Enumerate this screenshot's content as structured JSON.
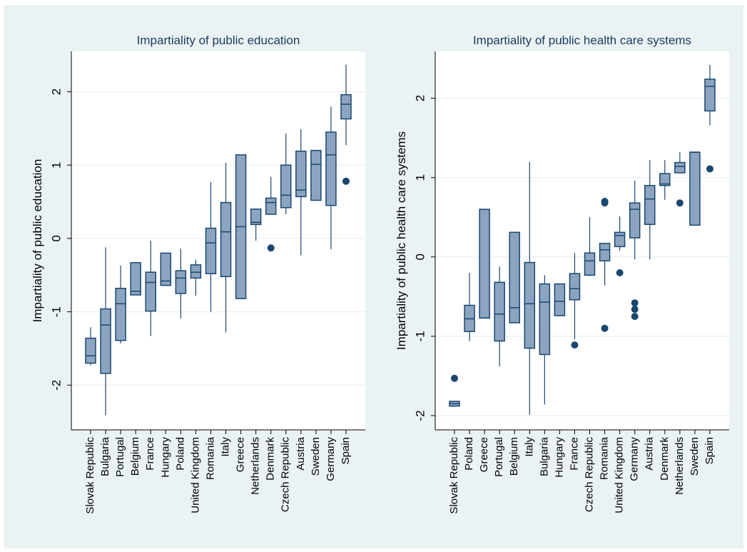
{
  "chart_data": [
    {
      "type": "box",
      "title": "Impartiality of public education",
      "ylabel": "Impartiality of public education",
      "categories": [
        "Slovak Republic",
        "Bulgaria",
        "Portugal",
        "Belgium",
        "France",
        "Hungary",
        "Poland",
        "United Kingdom",
        "Romania",
        "Italy",
        "Greece",
        "Netherlands",
        "Denmark",
        "Czech Republic",
        "Austria",
        "Sweden",
        "Germany",
        "Spain"
      ],
      "boxes": [
        {
          "min": -1.73,
          "q1": -1.7,
          "median": -1.6,
          "q3": -1.36,
          "max": -1.21,
          "outliers": []
        },
        {
          "min": -2.41,
          "q1": -1.84,
          "median": -1.18,
          "q3": -0.96,
          "max": -0.12,
          "outliers": []
        },
        {
          "min": -1.43,
          "q1": -1.39,
          "median": -0.89,
          "q3": -0.68,
          "max": -0.37,
          "outliers": []
        },
        {
          "min": -0.77,
          "q1": -0.77,
          "median": -0.72,
          "q3": -0.33,
          "max": -0.33,
          "outliers": []
        },
        {
          "min": -1.33,
          "q1": -0.99,
          "median": -0.6,
          "q3": -0.46,
          "max": -0.03,
          "outliers": []
        },
        {
          "min": -0.64,
          "q1": -0.64,
          "median": -0.58,
          "q3": -0.2,
          "max": -0.2,
          "outliers": []
        },
        {
          "min": -1.09,
          "q1": -0.75,
          "median": -0.54,
          "q3": -0.44,
          "max": -0.14,
          "outliers": []
        },
        {
          "min": -0.78,
          "q1": -0.54,
          "median": -0.46,
          "q3": -0.36,
          "max": -0.29,
          "outliers": []
        },
        {
          "min": -1.0,
          "q1": -0.48,
          "median": -0.06,
          "q3": 0.14,
          "max": 0.77,
          "outliers": []
        },
        {
          "min": -1.28,
          "q1": -0.52,
          "median": 0.09,
          "q3": 0.49,
          "max": 1.03,
          "outliers": []
        },
        {
          "min": -0.82,
          "q1": -0.82,
          "median": 0.16,
          "q3": 1.14,
          "max": 1.14,
          "outliers": []
        },
        {
          "min": -0.03,
          "q1": 0.19,
          "median": 0.22,
          "q3": 0.4,
          "max": 0.4,
          "outliers": []
        },
        {
          "min": 0.33,
          "q1": 0.33,
          "median": 0.49,
          "q3": 0.55,
          "max": 0.84,
          "outliers": [
            -0.13
          ]
        },
        {
          "min": 0.33,
          "q1": 0.42,
          "median": 0.59,
          "q3": 1.0,
          "max": 1.43,
          "outliers": []
        },
        {
          "min": -0.23,
          "q1": 0.57,
          "median": 0.66,
          "q3": 1.19,
          "max": 1.49,
          "outliers": []
        },
        {
          "min": 0.52,
          "q1": 0.52,
          "median": 1.01,
          "q3": 1.2,
          "max": 1.2,
          "outliers": []
        },
        {
          "min": -0.15,
          "q1": 0.45,
          "median": 1.14,
          "q3": 1.45,
          "max": 1.8,
          "outliers": []
        },
        {
          "min": 1.27,
          "q1": 1.63,
          "median": 1.83,
          "q3": 1.96,
          "max": 2.37,
          "outliers": [
            0.78
          ]
        }
      ],
      "ylim": [
        -2.61,
        2.55
      ],
      "yticks": [
        -2,
        -1,
        0,
        1,
        2
      ],
      "grid": true,
      "color": "#8ca4c0",
      "edge_color": "#1a476f"
    },
    {
      "type": "box",
      "title": "Impartiality of public health care systems",
      "ylabel": "Impartiality of public health care systems",
      "categories": [
        "Slovak Republic",
        "Poland",
        "Greece",
        "Portugal",
        "Belgium",
        "Italy",
        "Bulgaria",
        "Hungary",
        "France",
        "Czech Republic",
        "Romania",
        "United Kingdom",
        "Germany",
        "Austria",
        "Denmark",
        "Netherlands",
        "Sweden",
        "Spain"
      ],
      "boxes": [
        {
          "min": -1.88,
          "q1": -1.88,
          "median": -1.85,
          "q3": -1.82,
          "max": -1.82,
          "outliers": [
            -1.53
          ]
        },
        {
          "min": -1.06,
          "q1": -0.94,
          "median": -0.78,
          "q3": -0.61,
          "max": -0.2,
          "outliers": []
        },
        {
          "min": -0.77,
          "q1": -0.77,
          "median": -0.77,
          "q3": 0.6,
          "max": 0.6,
          "outliers": []
        },
        {
          "min": -1.38,
          "q1": -1.06,
          "median": -0.72,
          "q3": -0.32,
          "max": -0.12,
          "outliers": []
        },
        {
          "min": -0.83,
          "q1": -0.83,
          "median": -0.64,
          "q3": 0.31,
          "max": 0.31,
          "outliers": []
        },
        {
          "min": -1.99,
          "q1": -1.15,
          "median": -0.59,
          "q3": -0.07,
          "max": 1.2,
          "outliers": []
        },
        {
          "min": -1.86,
          "q1": -1.23,
          "median": -0.57,
          "q3": -0.34,
          "max": -0.23,
          "outliers": []
        },
        {
          "min": -0.74,
          "q1": -0.74,
          "median": -0.56,
          "q3": -0.34,
          "max": -0.34,
          "outliers": []
        },
        {
          "min": -1.04,
          "q1": -0.54,
          "median": -0.4,
          "q3": -0.21,
          "max": 0.05,
          "outliers": [
            -1.11
          ]
        },
        {
          "min": -0.24,
          "q1": -0.23,
          "median": -0.05,
          "q3": 0.05,
          "max": 0.5,
          "outliers": []
        },
        {
          "min": -0.36,
          "q1": -0.05,
          "median": 0.09,
          "q3": 0.17,
          "max": 0.17,
          "outliers": [
            0.7,
            0.68,
            -0.9
          ]
        },
        {
          "min": 0.08,
          "q1": 0.13,
          "median": 0.27,
          "q3": 0.31,
          "max": 0.51,
          "outliers": [
            -0.2
          ]
        },
        {
          "min": -0.03,
          "q1": 0.24,
          "median": 0.6,
          "q3": 0.68,
          "max": 0.96,
          "outliers": [
            -0.58,
            -0.66,
            -0.75
          ]
        },
        {
          "min": -0.03,
          "q1": 0.41,
          "median": 0.73,
          "q3": 0.9,
          "max": 1.22,
          "outliers": []
        },
        {
          "min": 0.72,
          "q1": 0.9,
          "median": 0.92,
          "q3": 1.05,
          "max": 1.22,
          "outliers": []
        },
        {
          "min": 1.06,
          "q1": 1.06,
          "median": 1.14,
          "q3": 1.19,
          "max": 1.32,
          "outliers": [
            0.68
          ]
        },
        {
          "min": 0.4,
          "q1": 0.4,
          "median": 1.32,
          "q3": 1.32,
          "max": 1.32,
          "outliers": []
        },
        {
          "min": 1.66,
          "q1": 1.84,
          "median": 2.15,
          "q3": 2.24,
          "max": 2.42,
          "outliers": [
            1.11
          ]
        }
      ],
      "ylim": [
        -2.18,
        2.59
      ],
      "yticks": [
        -2,
        -1,
        0,
        1,
        2
      ],
      "grid": true,
      "color": "#8ca4c0",
      "edge_color": "#1a476f"
    }
  ]
}
